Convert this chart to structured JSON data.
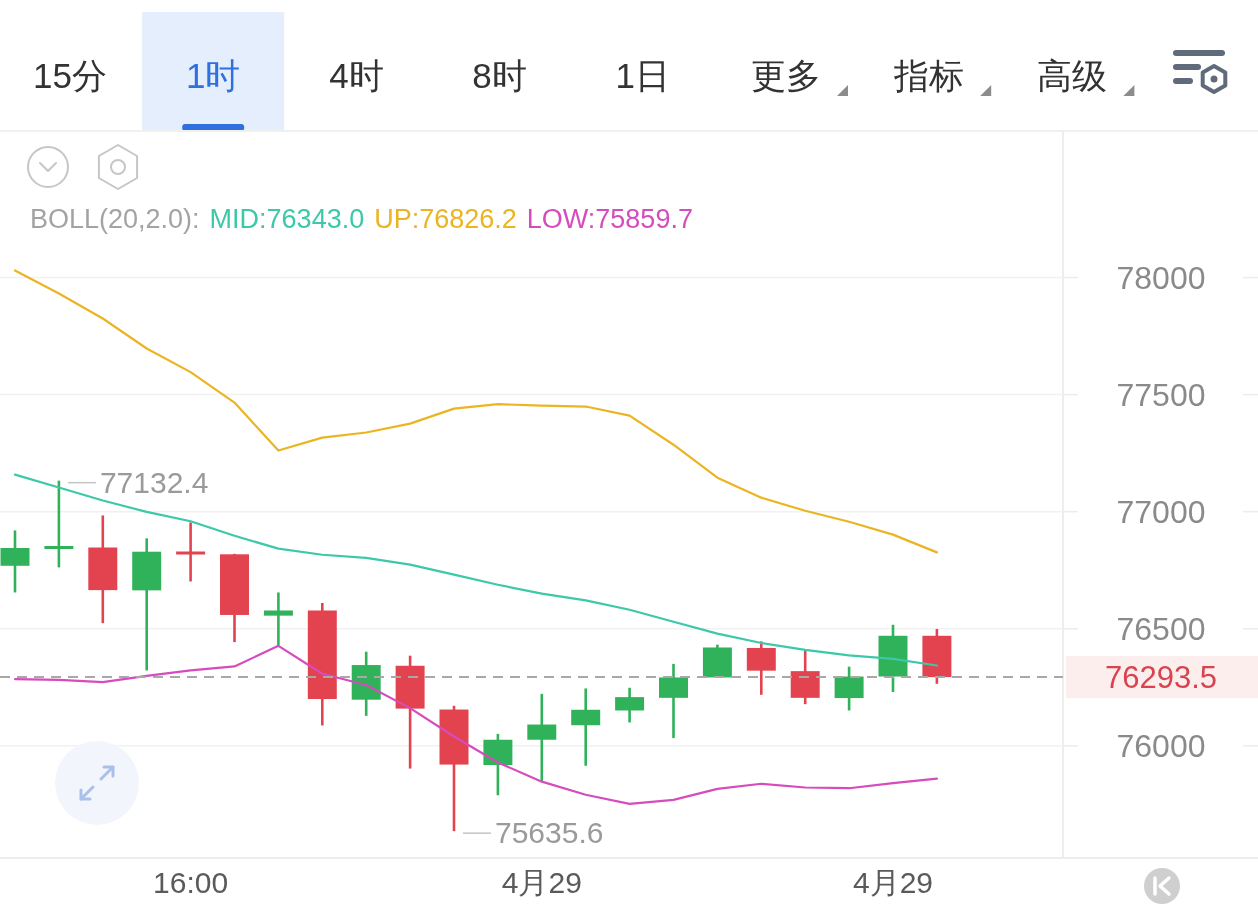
{
  "chart_data": [
    {
      "type": "other",
      "annotations": [
        "15分",
        "1时",
        "4时",
        "8时",
        "1日",
        "更多",
        "指标",
        "高级"
      ]
    },
    {
      "type": "candlestick",
      "categories": [
        null,
        null,
        null,
        null,
        "16:00",
        null,
        null,
        null,
        null,
        null,
        null,
        null,
        "4月29",
        null,
        null,
        null,
        null,
        null,
        null,
        null,
        "4月29",
        null
      ],
      "ohlc": [
        [
          76769,
          76920,
          76655,
          76845
        ],
        [
          76845,
          77132.4,
          76762,
          76849
        ],
        [
          76847,
          76984,
          76524,
          76665
        ],
        [
          76664,
          76886,
          76322,
          76829
        ],
        [
          76825,
          76954,
          76702,
          76822
        ],
        [
          76818,
          76820,
          76443,
          76559
        ],
        [
          76556,
          76655,
          76429,
          76578
        ],
        [
          76578,
          76610,
          76087,
          76200
        ],
        [
          76197,
          76402,
          76128,
          76345
        ],
        [
          76342,
          76385,
          75903,
          76159
        ],
        [
          76155,
          76171,
          75635.6,
          75920
        ],
        [
          75918,
          76051,
          75789,
          76026
        ],
        [
          76026,
          76222,
          75846,
          76091
        ],
        [
          76088,
          76245,
          75915,
          76154
        ],
        [
          76151,
          76248,
          76100,
          76208
        ],
        [
          76205,
          76350,
          76033,
          76292
        ],
        [
          76292,
          76432,
          76290,
          76420
        ],
        [
          76418,
          76446,
          76218,
          76321
        ],
        [
          76319,
          76407,
          76178,
          76205
        ],
        [
          76204,
          76338,
          76151,
          76296
        ],
        [
          76296,
          76517,
          76230,
          76470
        ],
        [
          76470,
          76499,
          76265,
          76293.5
        ]
      ],
      "colors": [
        "#2fb25a",
        "#2fb25a",
        "#e3434f",
        "#2fb25a",
        "#e3434f",
        "#e3434f",
        "#2fb25a",
        "#e3434f",
        "#2fb25a",
        "#e3434f",
        "#e3434f",
        "#2fb25a",
        "#2fb25a",
        "#2fb25a",
        "#2fb25a",
        "#2fb25a",
        "#2fb25a",
        "#e3434f",
        "#e3434f",
        "#2fb25a",
        "#2fb25a",
        "#e3434f"
      ],
      "series": [
        {
          "name": "MID:76343.0",
          "type": "line",
          "color": "#3dc8a9",
          "values": [
            77158,
            77103,
            77048,
            76999,
            76959,
            76897,
            76842,
            76816,
            76803,
            76774,
            76731,
            76688,
            76650,
            76621,
            76581,
            76530,
            76479,
            76439,
            76410,
            76386,
            76371,
            76343.0
          ]
        },
        {
          "name": "UP:76826.2",
          "type": "line",
          "color": "#ebb423",
          "values": [
            78030,
            77932,
            77825,
            77697,
            77596,
            77466,
            77261,
            77316,
            77338,
            77376,
            77440,
            77459,
            77453,
            77449,
            77410,
            77286,
            77145,
            77060,
            77004,
            76957,
            76902,
            76826.2
          ]
        },
        {
          "name": "LOW:75859.7",
          "type": "line",
          "color": "#d64cbc",
          "values": [
            76285,
            76282,
            76272,
            76299,
            76322,
            76339,
            76427,
            76308,
            76260,
            76161,
            76040,
            75929,
            75847,
            75791,
            75752,
            75769,
            75816,
            75838,
            75822,
            75819,
            75841,
            75859.7
          ]
        }
      ],
      "legend_title": "BOLL(20,2.0):",
      "legend": "top left",
      "ylim": [
        75521,
        78630
      ],
      "yticks": [
        76000,
        76500,
        77000,
        77500,
        78000
      ],
      "grid": "y",
      "ref_lines": [
        {
          "axis": "y",
          "value": 76293.5,
          "color": "#a8a8a8",
          "line_style": "dashed"
        }
      ],
      "annotations": [
        "77132.4",
        "75635.6",
        "76293.5"
      ]
    }
  ]
}
